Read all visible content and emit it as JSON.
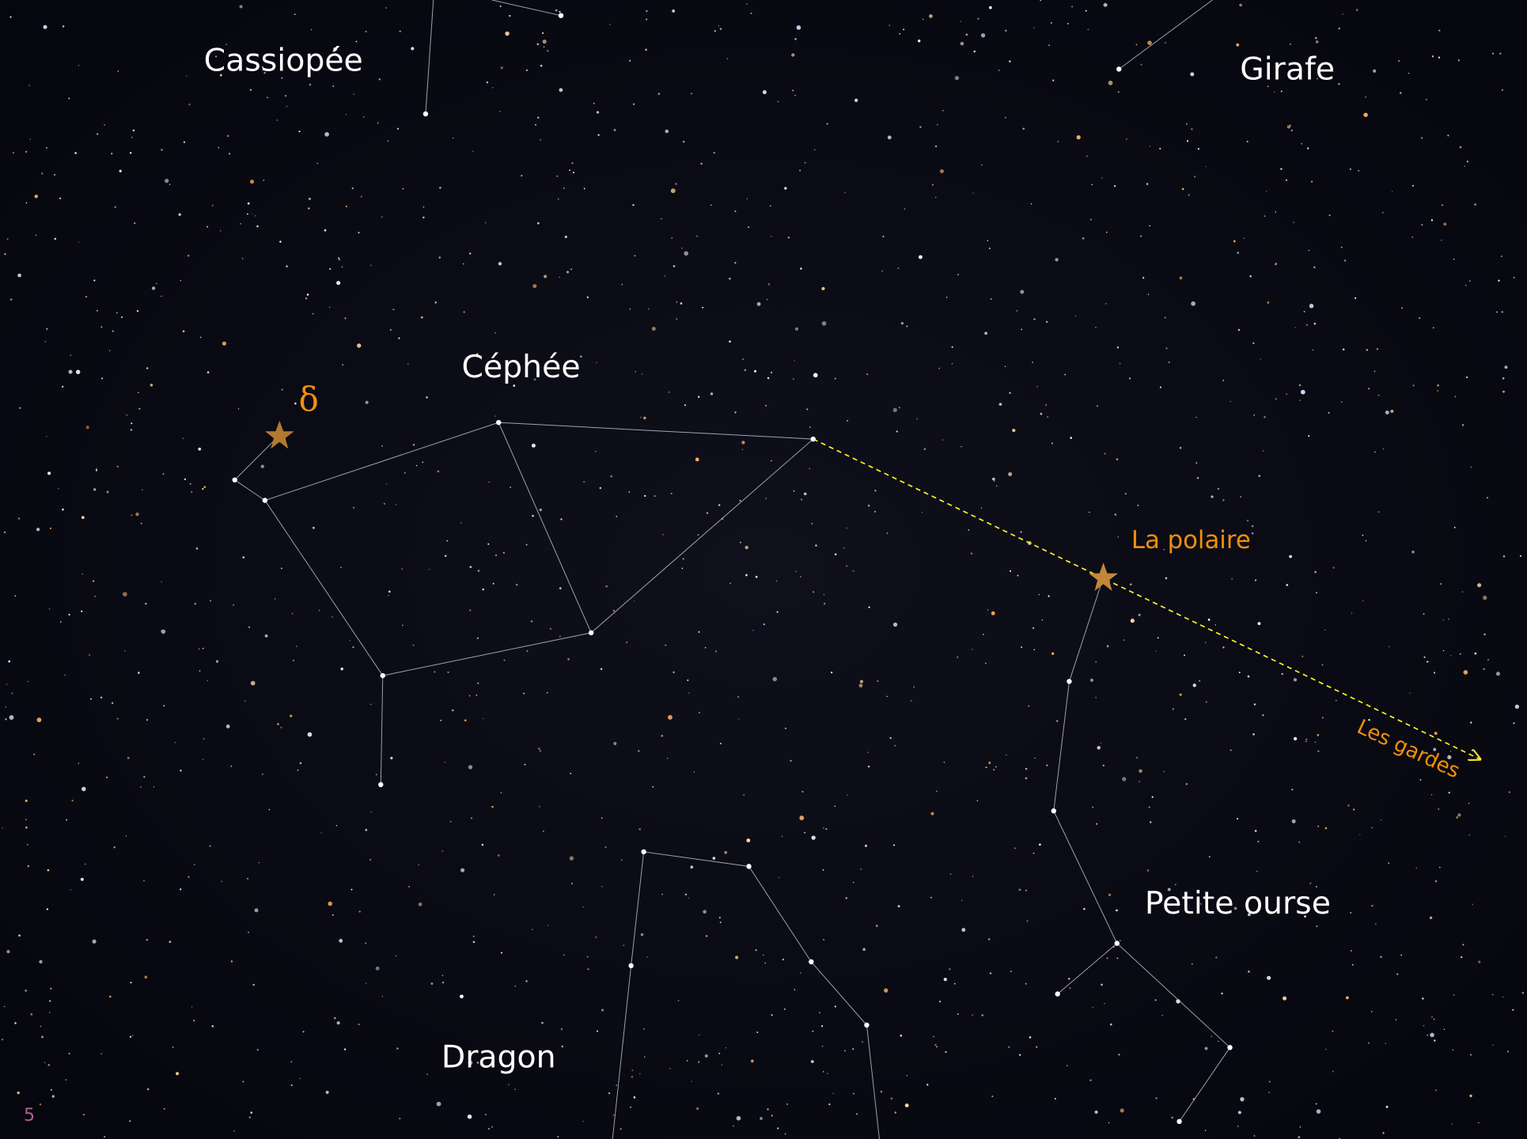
{
  "labels": {
    "cassiopee": "Cassiopée",
    "girafe": "Girafe",
    "cephee": "Céphée",
    "delta": "δ",
    "polaire": "La polaire",
    "gardes": "Les gardes",
    "petite_ourse": "Petite ourse",
    "dragon": "Dragon"
  },
  "slide_number": "5"
}
